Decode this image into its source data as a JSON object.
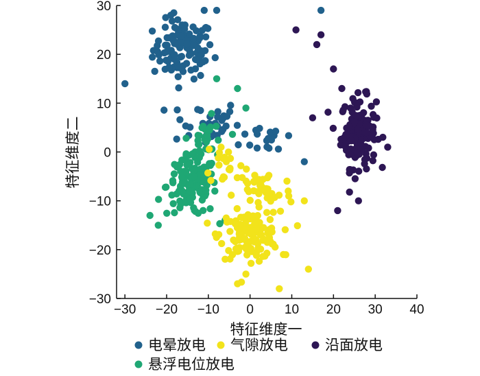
{
  "chart_data": {
    "type": "scatter",
    "title": "",
    "xlabel": "特征维度一",
    "ylabel": "特征维度二",
    "xlim": [
      -32,
      40
    ],
    "ylim": [
      -30,
      30
    ],
    "xticks": [
      -30,
      -20,
      -10,
      0,
      10,
      20,
      30,
      40
    ],
    "yticks": [
      -30,
      -20,
      -10,
      0,
      10,
      20,
      30
    ],
    "grid": false,
    "legend_position": "bottom",
    "series": [
      {
        "name": "电晕放电",
        "color": "#21618c",
        "clusters": [
          {
            "center": [
              -16,
              21
            ],
            "spread": [
              6,
              5
            ],
            "count": 110
          },
          {
            "center": [
              -11,
              6
            ],
            "spread": [
              7,
              4
            ],
            "count": 35
          },
          {
            "center": [
              5,
              3
            ],
            "spread": [
              6,
              3
            ],
            "count": 18
          }
        ],
        "points": [
          [
            -11,
            29
          ],
          [
            -8,
            29
          ],
          [
            -19,
            28
          ],
          [
            17,
            29
          ],
          [
            -30,
            14
          ],
          [
            13,
            -2
          ]
        ]
      },
      {
        "name": "气隙放电",
        "color": "#f2e31b",
        "clusters": [
          {
            "center": [
              0,
              -17
            ],
            "spread": [
              6,
              4
            ],
            "count": 130
          },
          {
            "center": [
              3,
              -8
            ],
            "spread": [
              6,
              4
            ],
            "count": 40
          },
          {
            "center": [
              -6,
              -2
            ],
            "spread": [
              4,
              4
            ],
            "count": 20
          }
        ],
        "points": [
          [
            -3,
            -27
          ],
          [
            7,
            -28
          ],
          [
            14,
            -24
          ],
          [
            8,
            -21
          ],
          [
            13,
            -10
          ],
          [
            -1,
            -25
          ]
        ]
      },
      {
        "name": "沿面放电",
        "color": "#2d1654",
        "clusters": [
          {
            "center": [
              26,
              4
            ],
            "spread": [
              3.5,
              6
            ],
            "count": 140
          }
        ],
        "points": [
          [
            11,
            25
          ],
          [
            17,
            24
          ],
          [
            16,
            22
          ],
          [
            20,
            17
          ],
          [
            22,
            13
          ],
          [
            21,
            -12
          ],
          [
            26,
            -10
          ],
          [
            33,
            1
          ],
          [
            15,
            7
          ]
        ]
      },
      {
        "name": "悬浮电位放电",
        "color": "#1fa774",
        "clusters": [
          {
            "center": [
              -14,
              -7
            ],
            "spread": [
              5,
              5
            ],
            "count": 130
          },
          {
            "center": [
              -10,
              2
            ],
            "spread": [
              4,
              4
            ],
            "count": 30
          }
        ],
        "points": [
          [
            -8,
            15
          ],
          [
            -3,
            13
          ],
          [
            -1,
            9
          ],
          [
            -24,
            -13
          ],
          [
            -22,
            -15
          ],
          [
            -6,
            -14
          ]
        ]
      }
    ]
  }
}
